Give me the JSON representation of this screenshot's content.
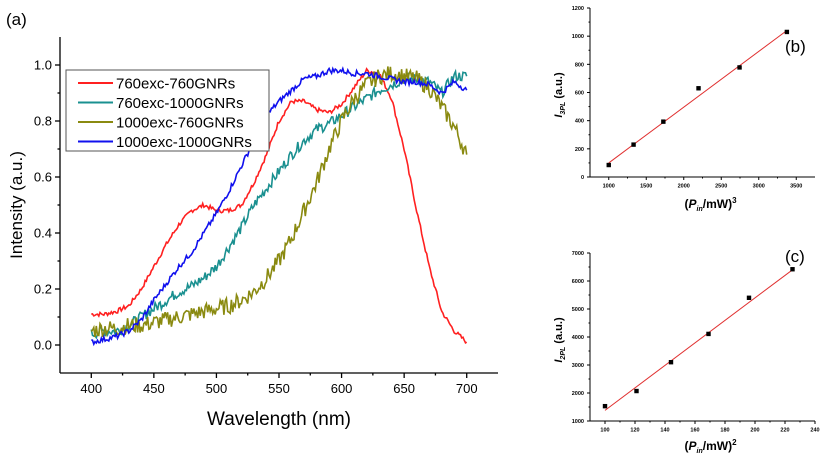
{
  "chart_data": [
    {
      "panel_label": "(a)",
      "type": "line",
      "xlabel": "Wavelength (nm)",
      "ylabel": "Intensity (a.u.)",
      "xlim": [
        375,
        725
      ],
      "ylim": [
        -0.1,
        1.1
      ],
      "xticks": [
        400,
        450,
        500,
        550,
        600,
        650,
        700
      ],
      "yticks": [
        0.0,
        0.2,
        0.4,
        0.6,
        0.8,
        1.0
      ],
      "grid": false,
      "legend": "top-left",
      "x": [
        400,
        410,
        420,
        430,
        440,
        450,
        460,
        470,
        480,
        490,
        500,
        510,
        520,
        530,
        540,
        550,
        560,
        570,
        580,
        590,
        600,
        610,
        620,
        630,
        640,
        650,
        660,
        670,
        680,
        690,
        700
      ],
      "series": [
        {
          "name": "760exc-760GNRs",
          "color": "#ff2020",
          "values": [
            0.11,
            0.11,
            0.12,
            0.14,
            0.2,
            0.28,
            0.36,
            0.43,
            0.48,
            0.5,
            0.48,
            0.48,
            0.5,
            0.58,
            0.68,
            0.8,
            0.87,
            0.87,
            0.84,
            0.83,
            0.86,
            0.92,
            0.98,
            0.97,
            0.88,
            0.7,
            0.48,
            0.28,
            0.12,
            0.05,
            0.01
          ]
        },
        {
          "name": "760exc-1000GNRs",
          "color": "#1a9090",
          "values": [
            0.04,
            0.05,
            0.05,
            0.07,
            0.1,
            0.13,
            0.16,
            0.19,
            0.21,
            0.24,
            0.28,
            0.35,
            0.42,
            0.5,
            0.56,
            0.62,
            0.68,
            0.73,
            0.77,
            0.79,
            0.82,
            0.85,
            0.88,
            0.91,
            0.93,
            0.95,
            0.95,
            0.94,
            0.9,
            0.96,
            0.96
          ]
        },
        {
          "name": "1000exc-760GNRs",
          "color": "#8a8a10",
          "values": [
            0.05,
            0.06,
            0.06,
            0.07,
            0.07,
            0.08,
            0.09,
            0.1,
            0.11,
            0.12,
            0.13,
            0.14,
            0.16,
            0.19,
            0.24,
            0.3,
            0.38,
            0.48,
            0.58,
            0.7,
            0.8,
            0.88,
            0.93,
            0.96,
            0.97,
            0.96,
            0.95,
            0.92,
            0.85,
            0.78,
            0.68
          ]
        },
        {
          "name": "1000exc-1000GNRs",
          "color": "#1010ee",
          "values": [
            0.01,
            0.02,
            0.03,
            0.05,
            0.09,
            0.16,
            0.22,
            0.28,
            0.33,
            0.4,
            0.47,
            0.55,
            0.64,
            0.73,
            0.82,
            0.87,
            0.91,
            0.95,
            0.96,
            0.98,
            0.98,
            0.97,
            0.97,
            0.96,
            0.95,
            0.94,
            0.94,
            0.93,
            0.9,
            0.94,
            0.91
          ]
        }
      ]
    },
    {
      "panel_label": "(b)",
      "type": "scatter",
      "xlabel": "(P_in/mW)^3",
      "xlabel_parts": {
        "open": "(",
        "p": "P",
        "sub": "in",
        "rest": "/mW)",
        "sup": "3"
      },
      "ylabel_parts": {
        "i": "I",
        "sub": "3PL",
        "rest": " (a.u.)"
      },
      "xlim": [
        750,
        3750
      ],
      "ylim": [
        0,
        1200
      ],
      "xticks": [
        1000,
        1500,
        2000,
        2500,
        3000,
        3500
      ],
      "yticks": [
        0,
        200,
        400,
        600,
        800,
        1000,
        1200
      ],
      "points": [
        [
          1000,
          85
        ],
        [
          1331,
          230
        ],
        [
          1728,
          393
        ],
        [
          2197,
          630
        ],
        [
          2744,
          778
        ],
        [
          3375,
          1030
        ]
      ],
      "fit_line": [
        [
          1000,
          100
        ],
        [
          3375,
          1040
        ]
      ],
      "marker_color": "#000000",
      "fit_color": "#e03030"
    },
    {
      "panel_label": "(c)",
      "type": "scatter",
      "xlabel": "(P_in/mW)^2",
      "xlabel_parts": {
        "open": "(",
        "p": "P",
        "sub": "in",
        "rest": "/mW)",
        "sup": "2"
      },
      "ylabel_parts": {
        "i": "I",
        "sub": "2PL",
        "rest": " (a.u.)"
      },
      "xlim": [
        90,
        240
      ],
      "ylim": [
        1000,
        7000
      ],
      "xticks": [
        100,
        120,
        140,
        160,
        180,
        200,
        220,
        240
      ],
      "yticks": [
        1000,
        2000,
        3000,
        4000,
        5000,
        6000,
        7000
      ],
      "points": [
        [
          100,
          1530
        ],
        [
          121,
          2070
        ],
        [
          144,
          3100
        ],
        [
          169,
          4110
        ],
        [
          196,
          5400
        ],
        [
          225,
          6420
        ]
      ],
      "fit_line": [
        [
          100,
          1380
        ],
        [
          225,
          6400
        ]
      ],
      "marker_color": "#000000",
      "fit_color": "#e03030"
    }
  ]
}
